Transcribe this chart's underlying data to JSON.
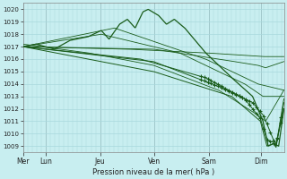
{
  "xlabel": "Pression niveau de la mer( hPa )",
  "bg_color": "#c8eef0",
  "grid_color": "#a8d8dc",
  "line_color": "#1a5c1a",
  "ylim": [
    1008.5,
    1020.5
  ],
  "yticks": [
    1009,
    1010,
    1011,
    1012,
    1013,
    1014,
    1015,
    1016,
    1017,
    1018,
    1019,
    1020
  ],
  "day_labels": [
    "Mer",
    "Lun",
    "Jeu",
    "Ven",
    "Sam",
    "Dim"
  ],
  "day_positions": [
    0,
    20,
    68,
    116,
    164,
    210
  ],
  "total_hours": 230,
  "n_lines": 8
}
